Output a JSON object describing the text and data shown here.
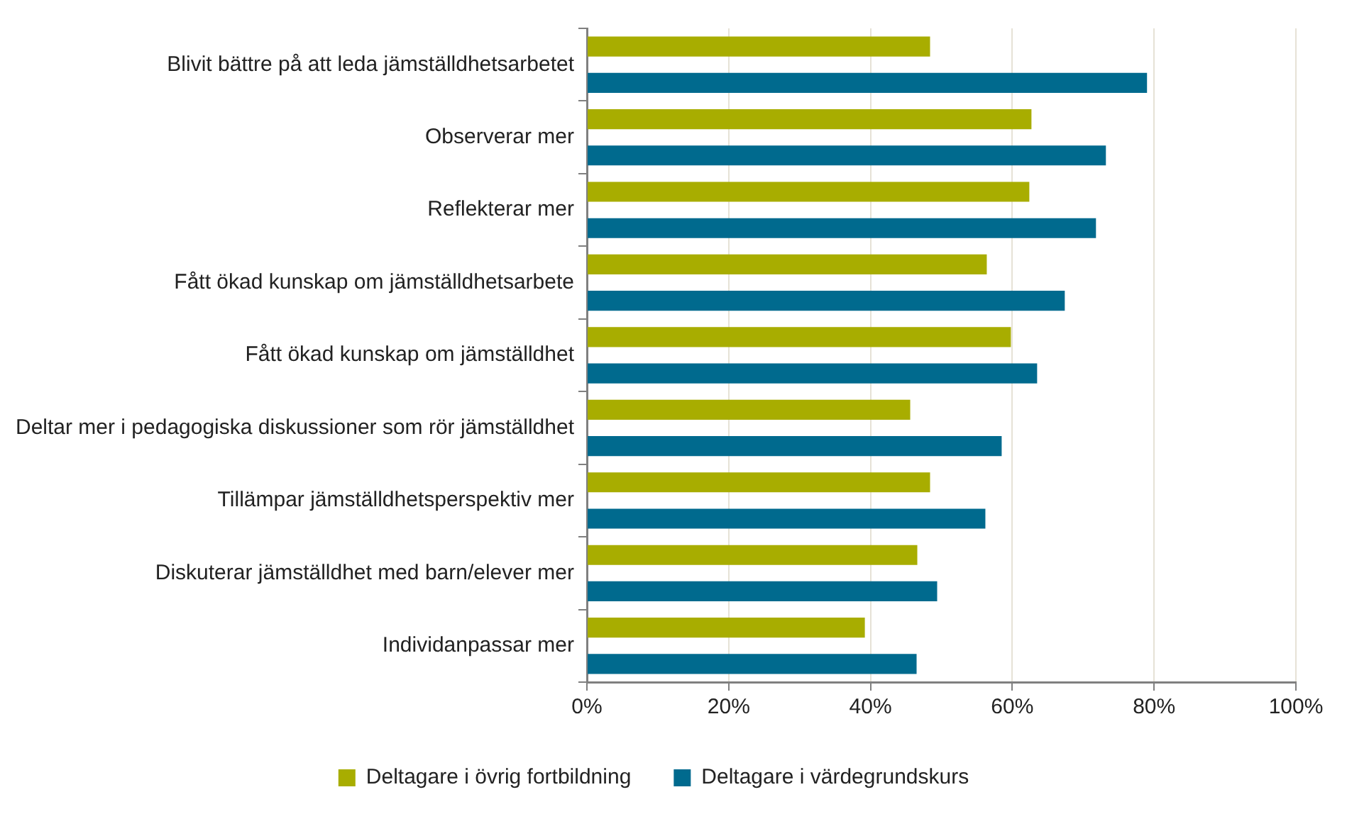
{
  "chart_data": {
    "type": "bar",
    "orientation": "horizontal",
    "categories": [
      "Blivit bättre på att leda jämställdhetsarbetet",
      "Observerar mer",
      "Reflekterar mer",
      "Fått ökad kunskap om jämställdhetsarbete",
      "Fått ökad kunskap om jämställdhet",
      "Deltar mer i pedagogiska diskussioner som rör jämställdhet",
      "Tillämpar jämställdhetsperspektiv mer",
      "Diskuterar jämställdhet med barn/elever mer",
      "Individanpassar mer"
    ],
    "series": [
      {
        "name": "Deltagare i övrig fortbildning",
        "color": "#a8ad00",
        "values": [
          48.4,
          62.7,
          62.4,
          56.4,
          59.8,
          45.6,
          48.4,
          46.6,
          39.2
        ]
      },
      {
        "name": "Deltagare i värdegrundskurs",
        "color": "#006a8e",
        "values": [
          79.0,
          73.2,
          71.8,
          67.4,
          63.5,
          58.5,
          56.2,
          49.4,
          46.5
        ]
      }
    ],
    "xlim": [
      0,
      100
    ],
    "xticks": [
      {
        "value": 0,
        "label": "0%"
      },
      {
        "value": 20,
        "label": "20%"
      },
      {
        "value": 40,
        "label": "40%"
      },
      {
        "value": 60,
        "label": "60%"
      },
      {
        "value": 80,
        "label": "80%"
      },
      {
        "value": 100,
        "label": "100%"
      }
    ],
    "grid": "x",
    "legend": "bottom"
  }
}
